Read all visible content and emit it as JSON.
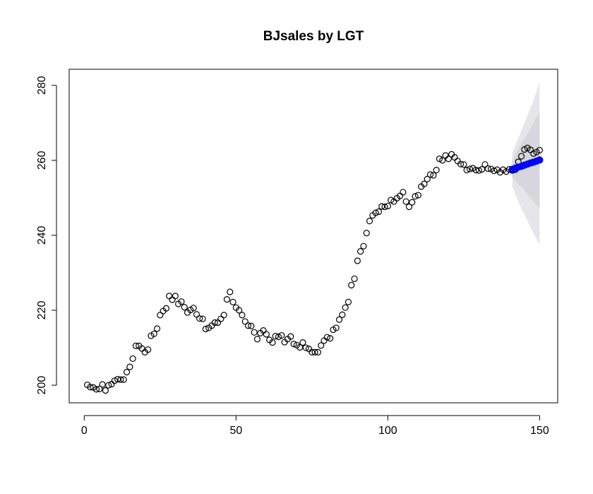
{
  "chart_data": {
    "type": "scatter",
    "title": "BJsales by LGT",
    "xlim": [
      -4.96,
      155.96
    ],
    "ylim": [
      195.3,
      284.3
    ],
    "xticks": [
      0,
      50,
      100,
      150
    ],
    "yticks": [
      200,
      220,
      240,
      260,
      280
    ],
    "grid": false,
    "bands": [
      {
        "color": "#e6e6ea",
        "x": [
          141,
          142,
          143,
          144,
          145,
          146,
          147,
          148,
          149,
          150
        ],
        "lower": [
          253,
          251,
          249,
          247,
          245.5,
          244,
          242,
          240.5,
          239,
          237.5
        ],
        "upper": [
          262,
          264,
          266,
          268,
          270,
          272,
          274,
          276,
          278.5,
          281
        ]
      },
      {
        "color": "#d6d6dc",
        "x": [
          141,
          142,
          143,
          144,
          145,
          146,
          147,
          148,
          149,
          150
        ],
        "lower": [
          255.5,
          254.5,
          253.5,
          253,
          252,
          251,
          250,
          249,
          248,
          247
        ],
        "upper": [
          260,
          261.5,
          263,
          264.5,
          266,
          267,
          268.5,
          270,
          271.5,
          273
        ]
      }
    ],
    "series": [
      {
        "color": "#000000",
        "marker": "open",
        "x": [
          1,
          2,
          3,
          4,
          5,
          6,
          7,
          8,
          9,
          10,
          11,
          12,
          13,
          14,
          15,
          16,
          17,
          18,
          19,
          20,
          21,
          22,
          23,
          24,
          25,
          26,
          27,
          28,
          29,
          30,
          31,
          32,
          33,
          34,
          35,
          36,
          37,
          38,
          39,
          40,
          41,
          42,
          43,
          44,
          45,
          46,
          47,
          48,
          49,
          50,
          51,
          52,
          53,
          54,
          55,
          56,
          57,
          58,
          59,
          60,
          61,
          62,
          63,
          64,
          65,
          66,
          67,
          68,
          69,
          70,
          71,
          72,
          73,
          74,
          75,
          76,
          77,
          78,
          79,
          80,
          81,
          82,
          83,
          84,
          85,
          86,
          87,
          88,
          89,
          90,
          91,
          92,
          93,
          94,
          95,
          96,
          97,
          98,
          99,
          100,
          101,
          102,
          103,
          104,
          105,
          106,
          107,
          108,
          109,
          110,
          111,
          112,
          113,
          114,
          115,
          116,
          117,
          118,
          119,
          120,
          121,
          122,
          123,
          124,
          125,
          126,
          127,
          128,
          129,
          130,
          131,
          132,
          133,
          134,
          135,
          136,
          137,
          138,
          139,
          140,
          141,
          142,
          143,
          144,
          145,
          146,
          147,
          148,
          149,
          150
        ],
        "values": [
          200.1,
          199.5,
          199.4,
          198.9,
          199.0,
          200.2,
          198.6,
          200.0,
          200.3,
          201.2,
          201.6,
          201.5,
          201.5,
          203.5,
          204.9,
          207.1,
          210.5,
          210.5,
          209.8,
          208.8,
          209.5,
          213.2,
          213.7,
          215.1,
          218.7,
          219.8,
          220.5,
          223.8,
          222.8,
          223.8,
          221.7,
          222.3,
          220.8,
          219.4,
          220.1,
          220.6,
          218.9,
          217.8,
          217.7,
          215.0,
          215.3,
          215.9,
          216.7,
          216.7,
          217.7,
          218.7,
          222.9,
          224.9,
          222.2,
          220.7,
          220.0,
          218.7,
          217.0,
          215.9,
          215.8,
          214.1,
          212.3,
          213.9,
          214.6,
          213.6,
          212.1,
          211.4,
          213.1,
          212.9,
          213.3,
          211.5,
          212.3,
          213.0,
          211.0,
          210.7,
          210.1,
          211.4,
          210.0,
          209.7,
          208.8,
          208.8,
          208.8,
          210.6,
          211.9,
          212.8,
          212.5,
          214.8,
          215.3,
          217.5,
          218.8,
          220.7,
          222.2,
          226.7,
          228.4,
          233.2,
          235.7,
          237.1,
          240.6,
          243.8,
          245.3,
          246.0,
          246.3,
          247.7,
          247.6,
          247.8,
          249.4,
          249.0,
          249.9,
          250.5,
          251.5,
          249.0,
          247.6,
          248.8,
          250.4,
          250.7,
          253.0,
          253.7,
          255.0,
          256.2,
          256.0,
          257.4,
          260.4,
          260.0,
          261.3,
          260.4,
          261.6,
          260.8,
          259.8,
          259.0,
          258.9,
          257.4,
          257.7,
          257.9,
          257.4,
          257.3,
          257.6,
          258.9,
          257.8,
          257.7,
          257.2,
          257.5,
          256.8,
          257.5,
          257.0,
          257.6,
          257.3,
          257.5,
          259.6,
          261.1,
          262.9,
          263.3,
          262.8,
          261.8,
          262.2,
          262.7
        ]
      },
      {
        "color": "#0000ff",
        "marker": "filled",
        "x": [
          141,
          142,
          143,
          144,
          145,
          146,
          147,
          148,
          149,
          150
        ],
        "values": [
          257.6,
          257.9,
          258.2,
          258.4,
          258.7,
          259.0,
          259.3,
          259.5,
          259.8,
          260.1
        ]
      }
    ]
  }
}
